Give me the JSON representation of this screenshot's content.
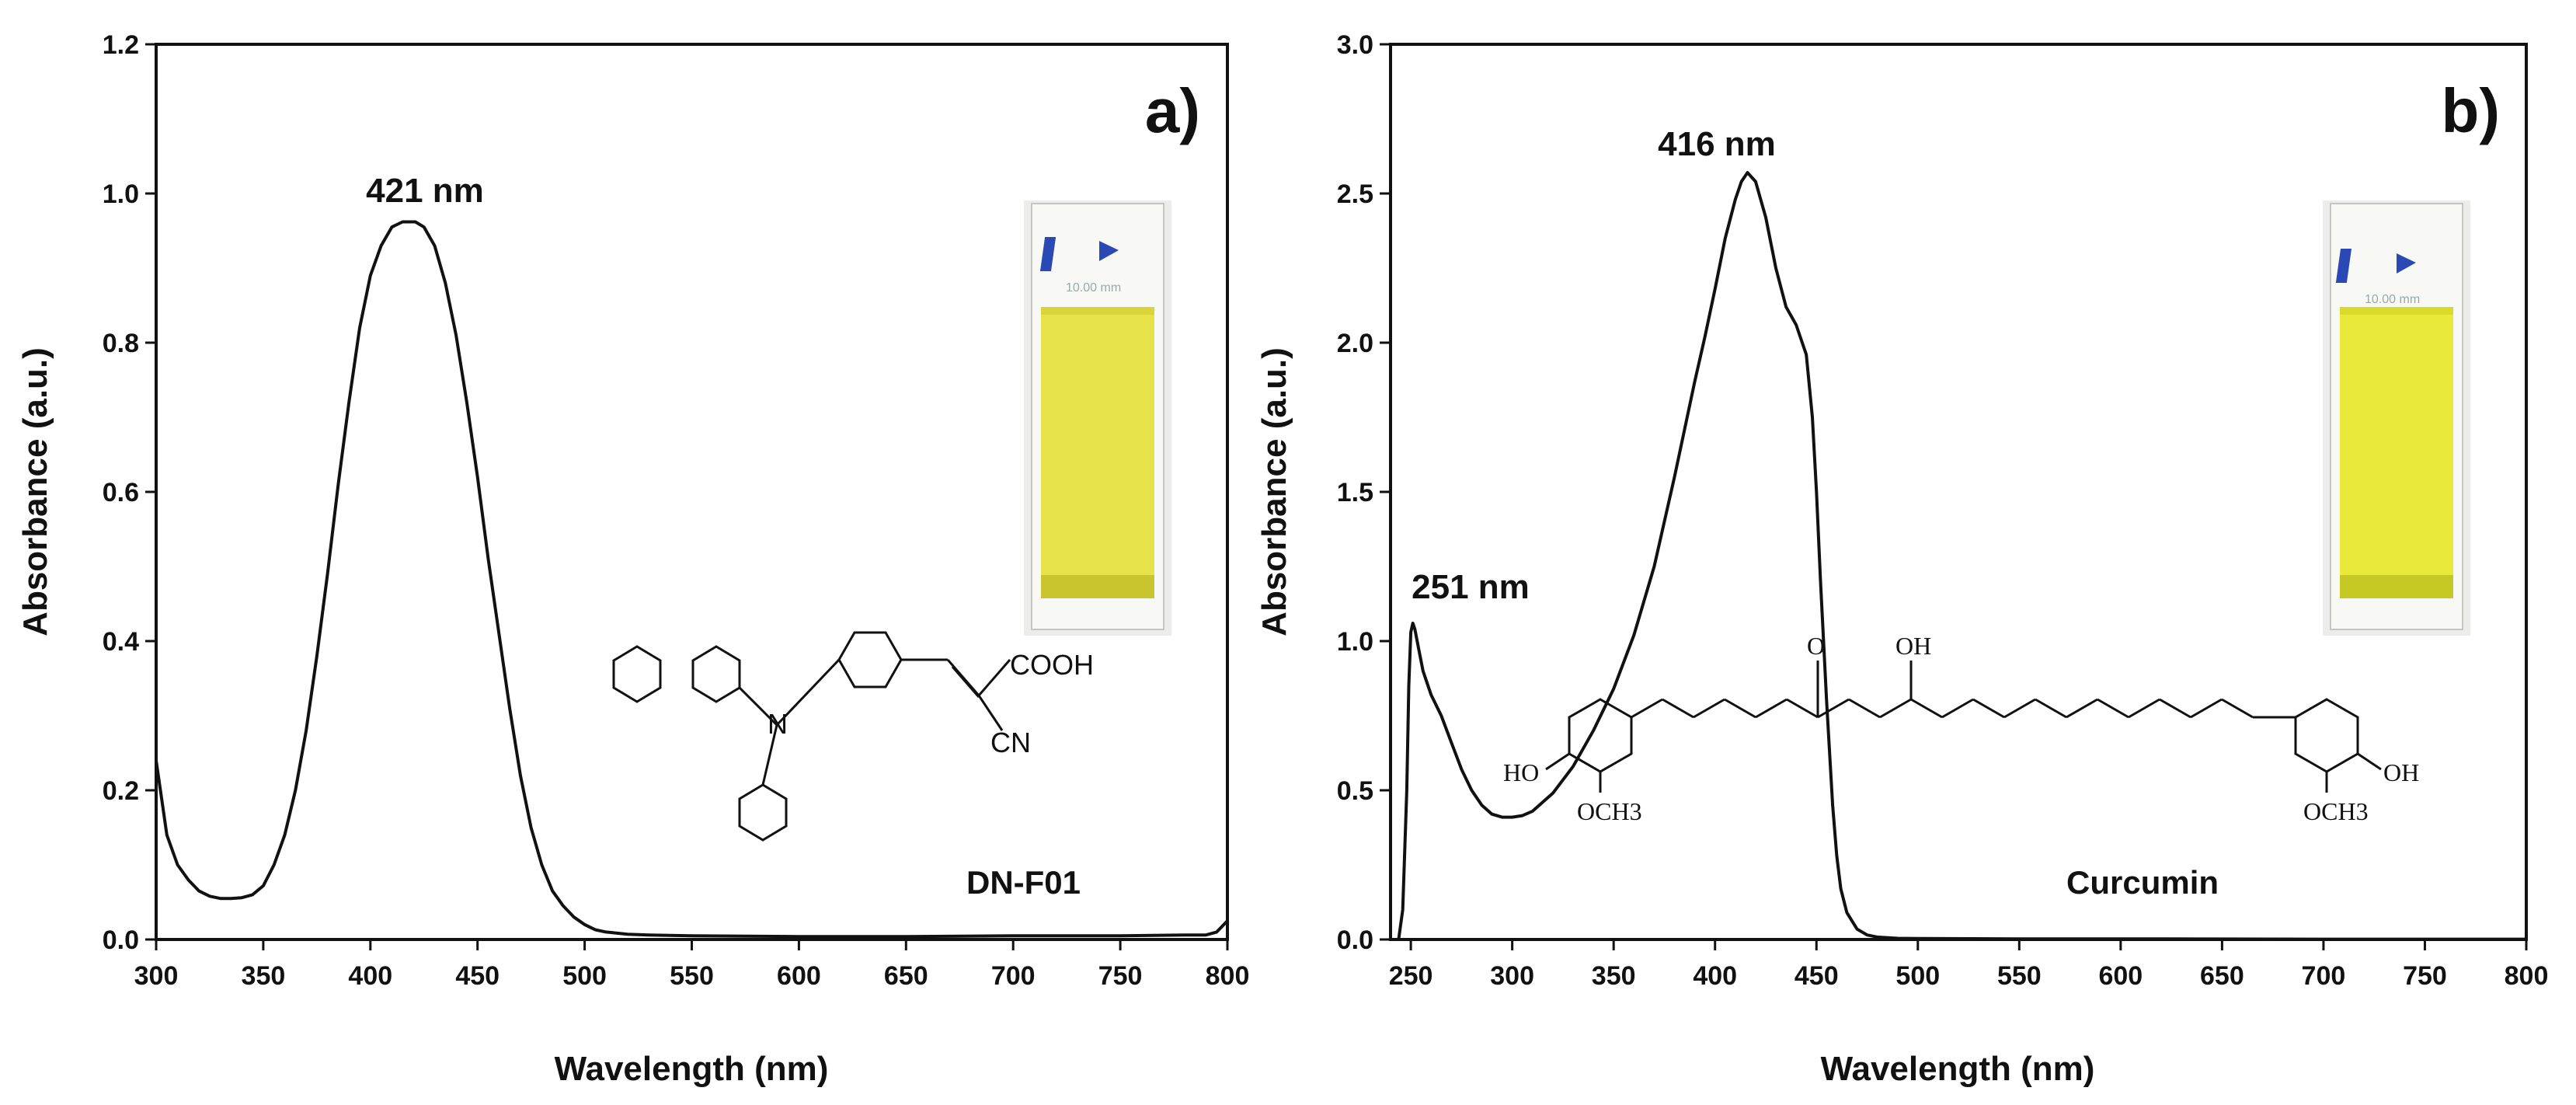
{
  "chart_data": [
    {
      "type": "line",
      "panel_label": "a)",
      "xlabel": "Wavelength (nm)",
      "ylabel": "Absorbance (a.u.)",
      "xlim": [
        300,
        800
      ],
      "ylim": [
        0,
        1.2
      ],
      "xticks": [
        "300",
        "350",
        "400",
        "450",
        "500",
        "550",
        "600",
        "650",
        "700",
        "750",
        "800"
      ],
      "yticks": [
        "0.0",
        "0.2",
        "0.4",
        "0.6",
        "0.8",
        "1.0",
        "1.2"
      ],
      "grid": false,
      "annotations": [
        {
          "text": "421 nm",
          "x": 421,
          "y": 0.96
        }
      ],
      "molecule": {
        "name": "DN-F01",
        "groups": [
          "COOH",
          "CN",
          "N"
        ],
        "cuvette_color": "#e6e34a"
      },
      "series": [
        {
          "x": [
            300,
            305,
            310,
            315,
            320,
            325,
            330,
            335,
            340,
            345,
            350,
            355,
            360,
            365,
            370,
            375,
            380,
            385,
            390,
            395,
            400,
            405,
            410,
            415,
            421,
            425,
            430,
            435,
            440,
            445,
            450,
            455,
            460,
            465,
            470,
            475,
            480,
            485,
            490,
            495,
            500,
            505,
            510,
            520,
            530,
            550,
            600,
            650,
            700,
            750,
            780,
            790,
            795,
            800
          ],
          "y": [
            0.24,
            0.14,
            0.1,
            0.08,
            0.065,
            0.058,
            0.055,
            0.055,
            0.056,
            0.06,
            0.072,
            0.1,
            0.14,
            0.2,
            0.28,
            0.38,
            0.49,
            0.61,
            0.72,
            0.82,
            0.89,
            0.93,
            0.955,
            0.962,
            0.962,
            0.955,
            0.93,
            0.88,
            0.81,
            0.72,
            0.62,
            0.51,
            0.41,
            0.31,
            0.22,
            0.15,
            0.1,
            0.065,
            0.045,
            0.03,
            0.02,
            0.013,
            0.01,
            0.007,
            0.006,
            0.005,
            0.004,
            0.004,
            0.005,
            0.005,
            0.006,
            0.006,
            0.01,
            0.025
          ]
        }
      ]
    },
    {
      "type": "line",
      "panel_label": "b)",
      "xlabel": "Wavelength (nm)",
      "ylabel": "Absorbance (a.u.)",
      "xlim": [
        240,
        800
      ],
      "ylim": [
        0,
        3.0
      ],
      "xticks": [
        "250",
        "300",
        "350",
        "400",
        "450",
        "500",
        "550",
        "600",
        "650",
        "700",
        "750",
        "800"
      ],
      "yticks": [
        "0.0",
        "0.5",
        "1.0",
        "1.5",
        "2.0",
        "2.5",
        "3.0"
      ],
      "grid": false,
      "annotations": [
        {
          "text": "416 nm",
          "x": 416,
          "y": 2.57
        },
        {
          "text": "251 nm",
          "x": 251,
          "y": 1.06
        }
      ],
      "molecule": {
        "name": "Curcumin",
        "groups": [
          "O",
          "OH",
          "HO",
          "OCH3",
          "OH",
          "OCH3"
        ],
        "cuvette_color": "#e8e93a"
      },
      "series": [
        {
          "x": [
            244,
            246,
            248,
            249,
            250,
            251,
            252,
            254,
            256,
            258,
            260,
            265,
            270,
            275,
            280,
            285,
            290,
            295,
            300,
            305,
            310,
            320,
            330,
            340,
            350,
            360,
            370,
            380,
            390,
            395,
            400,
            405,
            410,
            413,
            416,
            420,
            425,
            430,
            435,
            440,
            445,
            448,
            450,
            452,
            455,
            458,
            460,
            462,
            465,
            470,
            475,
            480,
            490,
            500,
            550,
            600,
            700,
            800
          ],
          "y": [
            0.0,
            0.1,
            0.5,
            0.85,
            1.03,
            1.06,
            1.04,
            0.97,
            0.9,
            0.86,
            0.82,
            0.75,
            0.66,
            0.57,
            0.5,
            0.45,
            0.42,
            0.41,
            0.41,
            0.415,
            0.43,
            0.49,
            0.58,
            0.7,
            0.84,
            1.02,
            1.25,
            1.55,
            1.87,
            2.02,
            2.18,
            2.35,
            2.48,
            2.54,
            2.57,
            2.54,
            2.42,
            2.25,
            2.12,
            2.06,
            1.96,
            1.75,
            1.5,
            1.2,
            0.8,
            0.45,
            0.28,
            0.17,
            0.09,
            0.035,
            0.015,
            0.008,
            0.004,
            0.003,
            0.002,
            0.002,
            0.001,
            0.001
          ]
        }
      ]
    }
  ]
}
